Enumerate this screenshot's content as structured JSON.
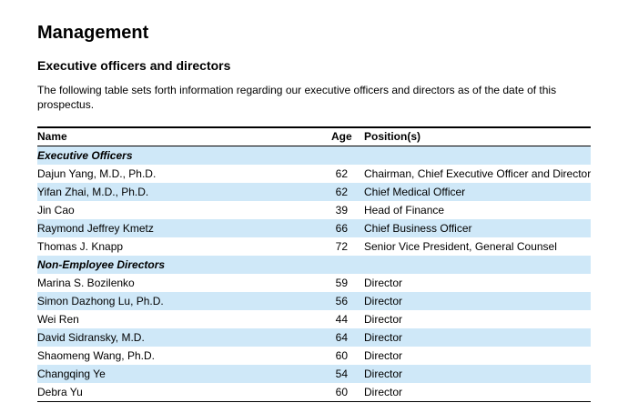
{
  "heading": "Management",
  "subheading": "Executive officers and directors",
  "intro": "The following table sets forth information regarding our executive officers and directors as of the date of this prospectus.",
  "table": {
    "columns": {
      "name": "Name",
      "age": "Age",
      "position": "Position(s)"
    },
    "sections": [
      {
        "label": "Executive Officers",
        "rows": [
          {
            "name": "Dajun Yang, M.D., Ph.D.",
            "age": "62",
            "position": "Chairman, Chief Executive Officer and Director"
          },
          {
            "name": "Yifan Zhai, M.D., Ph.D.",
            "age": "62",
            "position": "Chief Medical Officer"
          },
          {
            "name": "Jin Cao",
            "age": "39",
            "position": "Head of Finance"
          },
          {
            "name": "Raymond Jeffrey Kmetz",
            "age": "66",
            "position": "Chief Business Officer"
          },
          {
            "name": "Thomas J. Knapp",
            "age": "72",
            "position": "Senior Vice President, General Counsel"
          }
        ]
      },
      {
        "label": "Non-Employee Directors",
        "rows": [
          {
            "name": "Marina S. Bozilenko",
            "age": "59",
            "position": "Director"
          },
          {
            "name": "Simon Dazhong Lu, Ph.D.",
            "age": "56",
            "position": "Director"
          },
          {
            "name": "Wei Ren",
            "age": "44",
            "position": "Director"
          },
          {
            "name": "David Sidransky, M.D.",
            "age": "64",
            "position": "Director"
          },
          {
            "name": "Shaomeng Wang, Ph.D.",
            "age": "60",
            "position": "Director"
          },
          {
            "name": "Changqing Ye",
            "age": "54",
            "position": "Director"
          },
          {
            "name": "Debra Yu",
            "age": "60",
            "position": "Director"
          }
        ]
      }
    ]
  },
  "colors": {
    "row_shade": "#cfe8f8",
    "rule": "#000000"
  }
}
